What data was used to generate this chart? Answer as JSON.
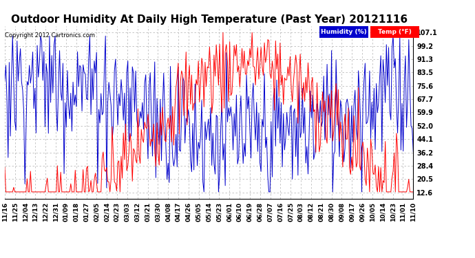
{
  "title": "Outdoor Humidity At Daily High Temperature (Past Year) 20121116",
  "copyright": "Copyright 2012 Cartronics.com",
  "legend_labels": [
    "Humidity (%)",
    "Temp (°F)"
  ],
  "legend_colors": [
    "#0000cc",
    "#ff0000"
  ],
  "yticks": [
    12.6,
    20.5,
    28.4,
    36.2,
    44.1,
    52.0,
    59.9,
    67.7,
    75.6,
    83.5,
    91.3,
    99.2,
    107.1
  ],
  "ymin": 9.0,
  "ymax": 111.0,
  "background_color": "#ffffff",
  "plot_bg_color": "#ffffff",
  "grid_color": "#bbbbbb",
  "title_fontsize": 11,
  "xtick_labels": [
    "11/16",
    "11/25",
    "12/04",
    "12/13",
    "12/22",
    "12/31",
    "01/09",
    "01/18",
    "01/27",
    "02/05",
    "02/14",
    "02/23",
    "03/03",
    "03/12",
    "03/21",
    "03/30",
    "04/08",
    "04/17",
    "04/26",
    "05/05",
    "05/14",
    "05/23",
    "06/01",
    "06/10",
    "06/19",
    "06/28",
    "07/07",
    "07/16",
    "07/25",
    "08/03",
    "08/12",
    "08/21",
    "08/30",
    "09/08",
    "09/17",
    "09/26",
    "10/05",
    "10/14",
    "10/23",
    "11/01",
    "11/10"
  ]
}
